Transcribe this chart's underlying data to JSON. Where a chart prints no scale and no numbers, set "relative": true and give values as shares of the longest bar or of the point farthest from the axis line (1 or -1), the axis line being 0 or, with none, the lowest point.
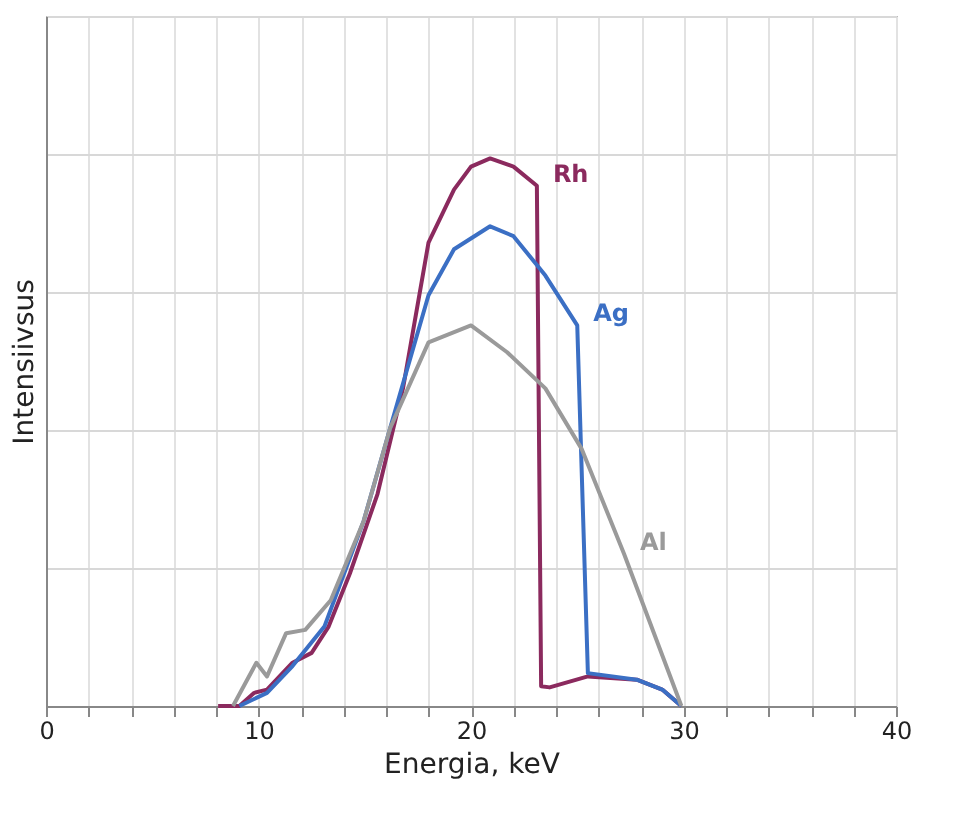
{
  "chart_data": {
    "type": "line",
    "relative": true,
    "xlabel": "Energia, keV",
    "ylabel": "Intensiivsus",
    "xlim": [
      0,
      40
    ],
    "xticks": [
      0,
      {
        "value": 2,
        "label": null
      },
      {
        "value": 4,
        "label": null
      },
      {
        "value": 6,
        "label": null
      },
      {
        "value": 8,
        "label": null
      },
      10,
      {
        "value": 12,
        "label": null
      },
      {
        "value": 14,
        "label": null
      },
      {
        "value": 16,
        "label": null
      },
      {
        "value": 18,
        "label": null
      },
      20,
      {
        "value": 22,
        "label": null
      },
      {
        "value": 24,
        "label": null
      },
      {
        "value": 26,
        "label": null
      },
      {
        "value": 28,
        "label": null
      },
      30,
      {
        "value": 32,
        "label": null
      },
      {
        "value": 34,
        "label": null
      },
      {
        "value": 36,
        "label": null
      },
      {
        "value": 38,
        "label": null
      },
      40
    ],
    "grid": true,
    "marker": "none",
    "line_style": "solid",
    "series": [
      {
        "name": "Rh",
        "color": "#8b2a5e",
        "x": [
          8.1,
          9.1,
          9.8,
          10.4,
          11.6,
          12.5,
          13.3,
          14.3,
          15.6,
          16.8,
          18.0,
          19.2,
          20.0,
          20.9,
          22.0,
          23.1,
          23.3,
          23.7,
          25.5,
          27.8,
          29.0,
          29.9
        ],
        "values": [
          0,
          0,
          0.024,
          0.03,
          0.079,
          0.097,
          0.145,
          0.242,
          0.387,
          0.58,
          0.846,
          0.943,
          0.985,
          1.0,
          0.985,
          0.95,
          0.036,
          0.034,
          0.054,
          0.048,
          0.03,
          0
        ]
      },
      {
        "name": "Ag",
        "color": "#3b6fc4",
        "x": [
          9.1,
          10.4,
          11.6,
          13.1,
          14.95,
          16.2,
          18.0,
          19.2,
          20.9,
          22.0,
          23.5,
          25.0,
          25.5,
          27.8,
          29.0,
          29.9
        ],
        "values": [
          0,
          0.024,
          0.073,
          0.145,
          0.338,
          0.508,
          0.75,
          0.834,
          0.876,
          0.858,
          0.786,
          0.695,
          0.06,
          0.048,
          0.03,
          0
        ]
      },
      {
        "name": "Al",
        "color": "#9a9a9a",
        "x": [
          8.8,
          9.9,
          10.4,
          11.3,
          12.2,
          13.4,
          14.95,
          16.2,
          18.0,
          20.0,
          21.7,
          23.5,
          25.2,
          27.2,
          29.9
        ],
        "values": [
          0,
          0.079,
          0.054,
          0.133,
          0.139,
          0.193,
          0.338,
          0.508,
          0.664,
          0.695,
          0.646,
          0.58,
          0.47,
          0.278,
          0
        ]
      }
    ]
  }
}
